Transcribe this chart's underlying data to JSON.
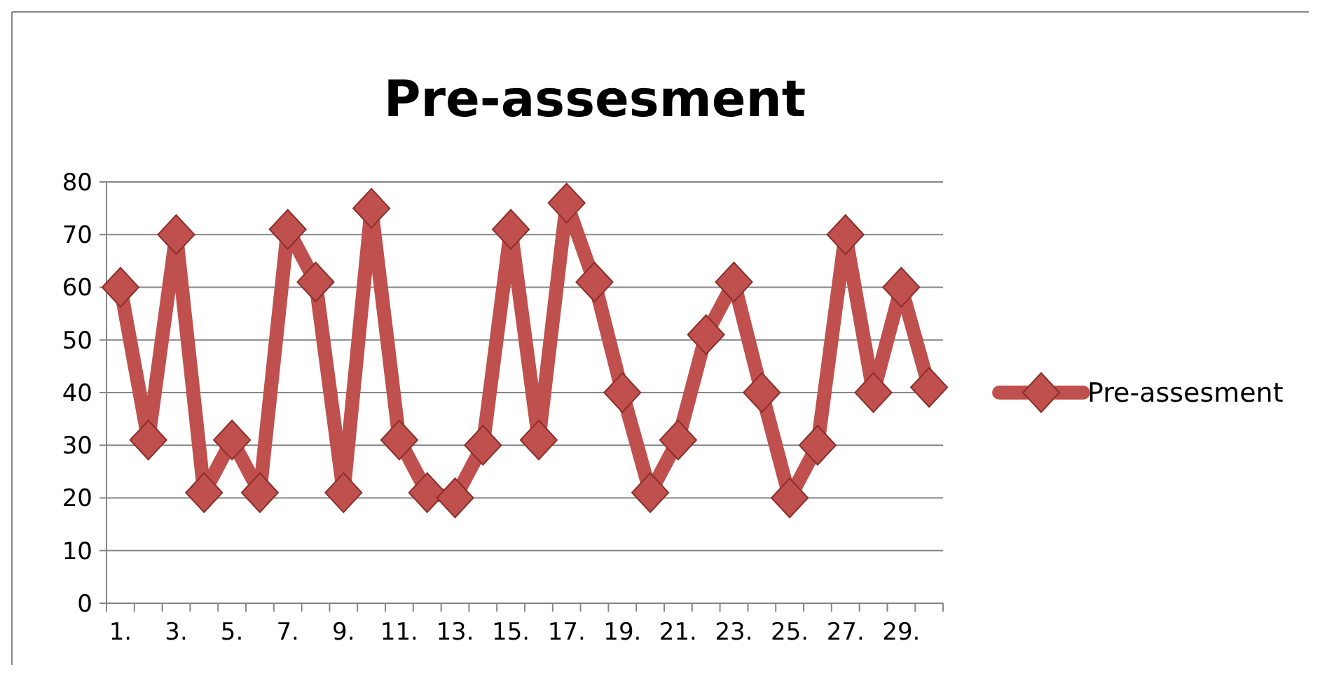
{
  "chart_data": {
    "type": "line",
    "title": "Pre-assesment",
    "categories": [
      "1.",
      null,
      "3.",
      null,
      "5.",
      null,
      "7.",
      null,
      "9.",
      null,
      "11.",
      null,
      "13.",
      null,
      "15.",
      null,
      "17.",
      null,
      "19.",
      null,
      "21.",
      null,
      "23.",
      null,
      "25.",
      null,
      "27.",
      null,
      "29.",
      null
    ],
    "series": [
      {
        "name": "Pre-assesment",
        "color": "#c0504d",
        "values": [
          60,
          31,
          70,
          21,
          31,
          21,
          71,
          61,
          21,
          75,
          31,
          21,
          20,
          30,
          71,
          31,
          76,
          61,
          40,
          21,
          31,
          51,
          61,
          40,
          20,
          30,
          70,
          40,
          60,
          41
        ]
      }
    ],
    "ylim": [
      0,
      80
    ],
    "yticks": [
      0,
      10,
      20,
      30,
      40,
      50,
      60,
      70,
      80
    ],
    "grid": "y",
    "legend": "right",
    "marker": "diamond"
  }
}
